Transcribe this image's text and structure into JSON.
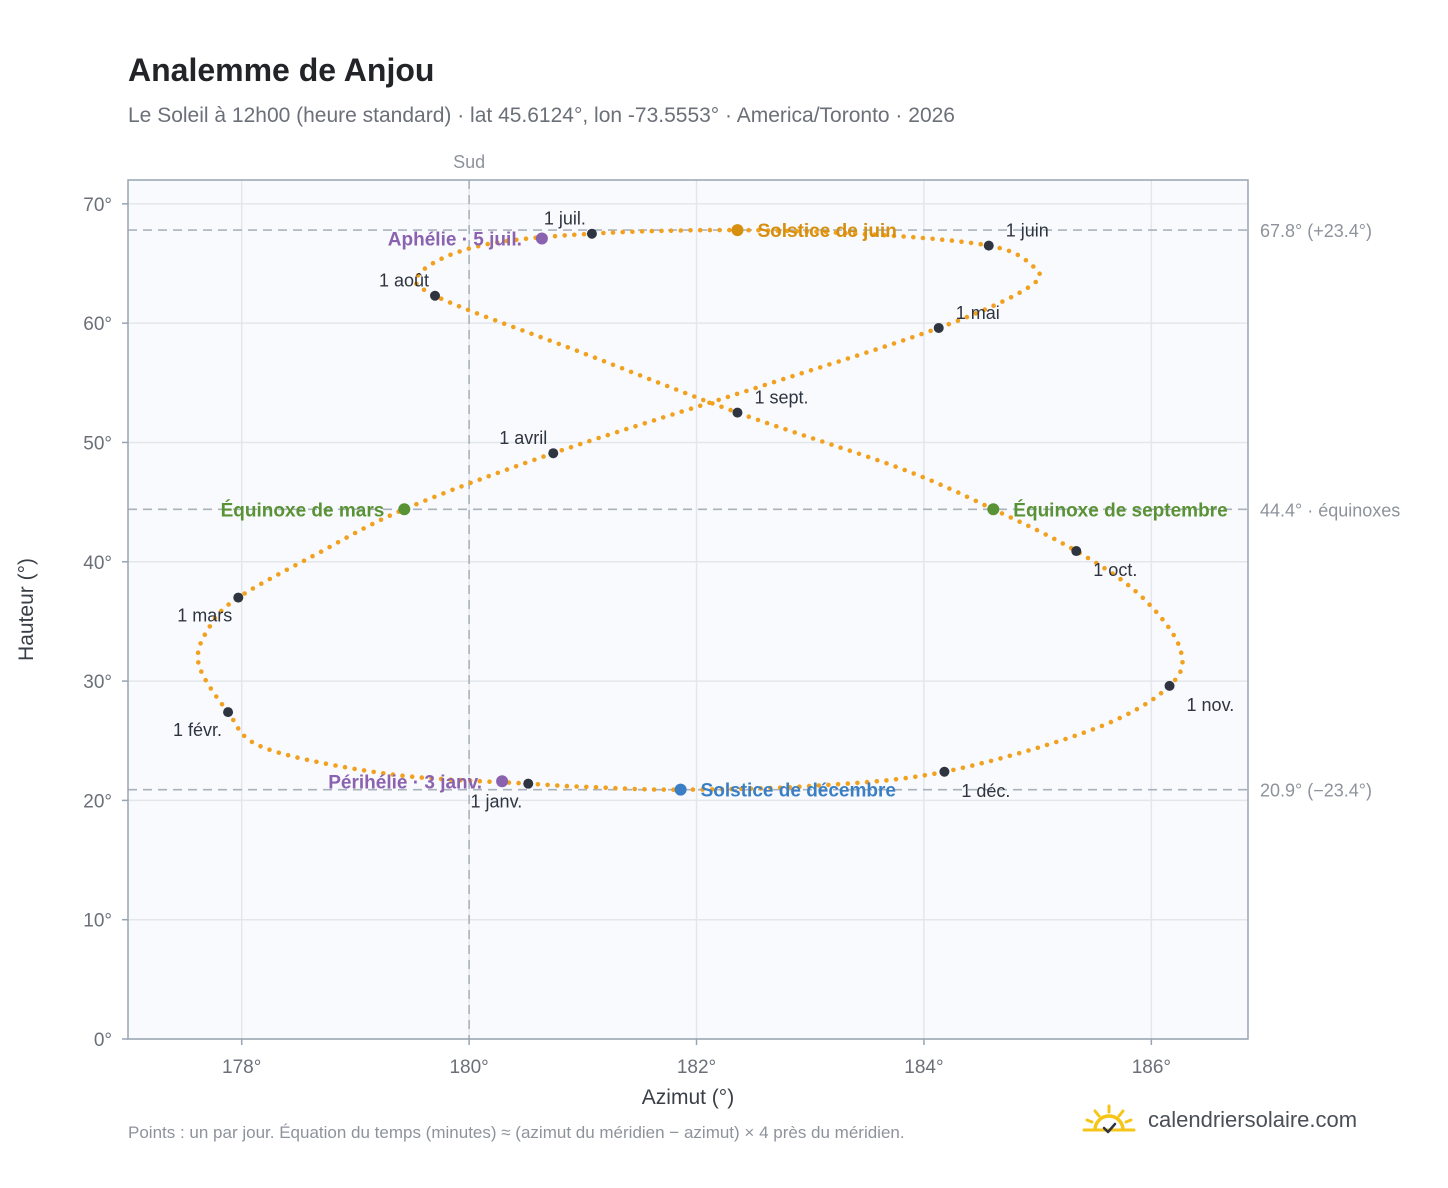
{
  "header": {
    "title": "Analemme de Anjou",
    "subtitle": "Le Soleil à 12h00 (heure standard) · lat 45.6124°, lon -73.5553° · America/Toronto · 2026"
  },
  "footer": {
    "note": "Points : un par jour. Équation du temps (minutes) ≈ (azimut du méridien − azimut) × 4 près du méridien.",
    "brand": "calendriersolaire.com",
    "brand_icon": "sun-icon"
  },
  "colors": {
    "curve": "#f2a11f",
    "month_marker": "#2f3540",
    "solstice_june": "#d68f0f",
    "solstice_december": "#3a7fc6",
    "equinox": "#5a9236",
    "apsis": "#8a62b0",
    "reference_line": "#aab3bd",
    "grid": "#e3e7ec",
    "plot_background": "#f8fafd",
    "frame": "#98a4b2"
  },
  "chart_data": {
    "type": "scatter",
    "title": "Analemme de Anjou",
    "xlabel": "Azimut (°)",
    "ylabel": "Hauteur (°)",
    "xlim": [
      177,
      186.85
    ],
    "ylim": [
      0,
      72
    ],
    "grid": true,
    "x_ticks": [
      178,
      180,
      182,
      184,
      186
    ],
    "x_tick_labels": [
      "178°",
      "180°",
      "182°",
      "184°",
      "186°"
    ],
    "y_ticks": [
      0,
      10,
      20,
      30,
      40,
      50,
      60,
      70
    ],
    "y_tick_labels": [
      "0°",
      "10°",
      "20°",
      "30°",
      "40°",
      "50°",
      "60°",
      "70°"
    ],
    "meridian": {
      "x": 180,
      "label": "Sud"
    },
    "reference_lines": [
      {
        "y": 67.8,
        "label": "67.8° (+23.4°)"
      },
      {
        "y": 44.4,
        "label": "44.4° · équinoxes"
      },
      {
        "y": 20.9,
        "label": "20.9° (−23.4°)"
      }
    ],
    "daily_points": {
      "count": 365,
      "description": "un par jour"
    },
    "month_markers": [
      {
        "label": "1 janv.",
        "x": 180.52,
        "y": 21.4,
        "anchor": "below-left"
      },
      {
        "label": "1 févr.",
        "x": 177.88,
        "y": 27.4,
        "anchor": "below-left"
      },
      {
        "label": "1 mars",
        "x": 177.97,
        "y": 37.0,
        "anchor": "below-left"
      },
      {
        "label": "1 avril",
        "x": 180.74,
        "y": 49.1,
        "anchor": "above-left"
      },
      {
        "label": "1 mai",
        "x": 184.13,
        "y": 59.6,
        "anchor": "above-right"
      },
      {
        "label": "1 juin",
        "x": 184.57,
        "y": 66.5,
        "anchor": "above-right"
      },
      {
        "label": "1 juil.",
        "x": 181.08,
        "y": 67.5,
        "anchor": "above-left"
      },
      {
        "label": "1 août",
        "x": 179.7,
        "y": 62.3,
        "anchor": "above-left"
      },
      {
        "label": "1 sept.",
        "x": 182.36,
        "y": 52.5,
        "anchor": "above-right"
      },
      {
        "label": "1 oct.",
        "x": 185.34,
        "y": 40.9,
        "anchor": "below-right"
      },
      {
        "label": "1 nov.",
        "x": 186.16,
        "y": 29.6,
        "anchor": "below-right"
      },
      {
        "label": "1 déc.",
        "x": 184.18,
        "y": 22.4,
        "anchor": "below-right"
      }
    ],
    "events": [
      {
        "label": "Solstice de juin",
        "x": 182.36,
        "y": 67.8,
        "kind": "solstice_june"
      },
      {
        "label": "Solstice de décembre",
        "x": 181.86,
        "y": 20.9,
        "kind": "solstice_december"
      },
      {
        "label": "Équinoxe de mars",
        "x": 179.43,
        "y": 44.4,
        "kind": "equinox",
        "side": "left"
      },
      {
        "label": "Équinoxe de septembre",
        "x": 184.61,
        "y": 44.4,
        "kind": "equinox",
        "side": "right"
      },
      {
        "label": "Aphélie · 5 juil.",
        "x": 180.64,
        "y": 67.1,
        "kind": "apsis",
        "side": "left"
      },
      {
        "label": "Périhélie · 3 janv.",
        "x": 180.29,
        "y": 21.6,
        "kind": "apsis",
        "side": "left"
      }
    ],
    "curve_anchors": [
      {
        "x": 180.52,
        "y": 21.4
      },
      {
        "x": 179.3,
        "y": 22.2
      },
      {
        "x": 178.2,
        "y": 24.4
      },
      {
        "x": 177.88,
        "y": 27.4
      },
      {
        "x": 177.62,
        "y": 31.5
      },
      {
        "x": 177.72,
        "y": 34.6
      },
      {
        "x": 177.97,
        "y": 37.0
      },
      {
        "x": 178.65,
        "y": 40.6
      },
      {
        "x": 179.43,
        "y": 44.4
      },
      {
        "x": 180.74,
        "y": 49.1
      },
      {
        "x": 182.4,
        "y": 54.2
      },
      {
        "x": 184.13,
        "y": 59.6
      },
      {
        "x": 184.95,
        "y": 63.2
      },
      {
        "x": 184.93,
        "y": 65.0
      },
      {
        "x": 184.57,
        "y": 66.5
      },
      {
        "x": 183.6,
        "y": 67.4
      },
      {
        "x": 182.36,
        "y": 67.8
      },
      {
        "x": 181.08,
        "y": 67.5
      },
      {
        "x": 180.1,
        "y": 66.5
      },
      {
        "x": 179.58,
        "y": 64.3
      },
      {
        "x": 179.7,
        "y": 62.3
      },
      {
        "x": 181.0,
        "y": 57.5
      },
      {
        "x": 182.36,
        "y": 52.5
      },
      {
        "x": 183.8,
        "y": 47.8
      },
      {
        "x": 184.61,
        "y": 44.4
      },
      {
        "x": 185.34,
        "y": 40.9
      },
      {
        "x": 185.9,
        "y": 37.2
      },
      {
        "x": 186.25,
        "y": 32.8
      },
      {
        "x": 186.16,
        "y": 29.6
      },
      {
        "x": 185.5,
        "y": 26.0
      },
      {
        "x": 184.18,
        "y": 22.4
      },
      {
        "x": 183.0,
        "y": 21.2
      },
      {
        "x": 181.86,
        "y": 20.9
      },
      {
        "x": 181.1,
        "y": 21.1
      },
      {
        "x": 180.52,
        "y": 21.4
      }
    ]
  }
}
